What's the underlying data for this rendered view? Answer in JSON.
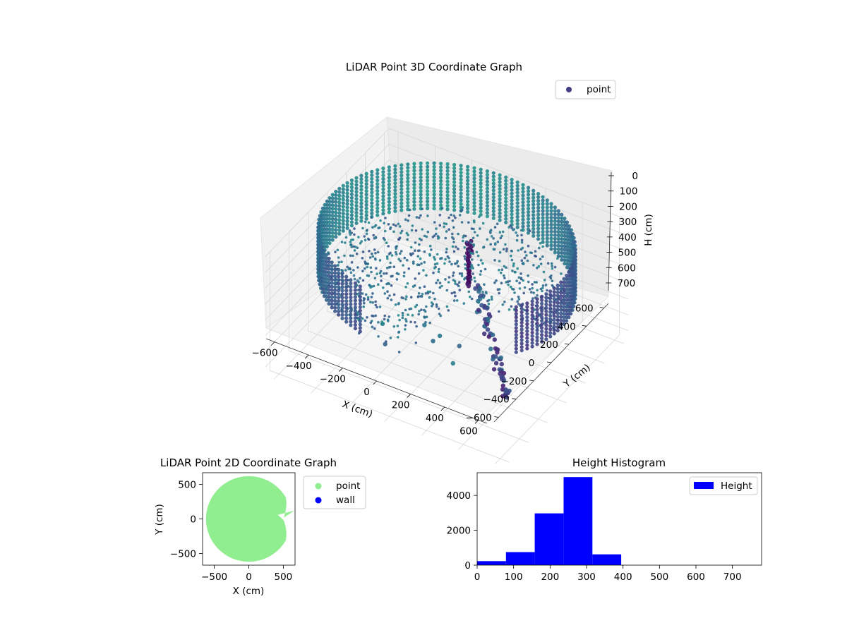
{
  "chart_data": [
    {
      "type": "scatter3d",
      "title": "LiDAR Point 3D Coordinate Graph",
      "xlabel": "X (cm)",
      "ylabel": "Y (cm)",
      "zlabel": "H (cm)",
      "xlim": [
        -650,
        650
      ],
      "ylim": [
        -650,
        650
      ],
      "zlim": [
        750,
        0
      ],
      "x_ticks": [
        "−600",
        "−400",
        "−200",
        "0",
        "200",
        "400",
        "600"
      ],
      "y_ticks": [
        "−600",
        "−400",
        "−200",
        "0",
        "200",
        "400",
        "600"
      ],
      "z_ticks": [
        "0",
        "100",
        "200",
        "300",
        "400",
        "500",
        "600",
        "700"
      ],
      "z_inverted": true,
      "grid": true,
      "legend": {
        "placement": "top-right",
        "entries": [
          {
            "label": "point",
            "color": "#433e85"
          }
        ]
      },
      "series": [
        {
          "name": "point",
          "colormap": "viridis",
          "shape": "cylindrical wall of radius ~620 cm spanning H 0–300 cm, open on the +X/−Y side, plus a vertical scan column near the origin and a cluster on the open side",
          "wall_radius": 620,
          "wall_height_range": [
            0,
            300
          ]
        }
      ]
    },
    {
      "type": "scatter",
      "title": "LiDAR Point 2D Coordinate Graph",
      "xlabel": "X (cm)",
      "ylabel": "Y (cm)",
      "xlim": [
        -670,
        670
      ],
      "ylim": [
        -670,
        670
      ],
      "x_ticks": [
        "−500",
        "0",
        "500"
      ],
      "y_ticks": [
        "−500",
        "0",
        "500"
      ],
      "legend": {
        "placement": "outside-right",
        "entries": [
          {
            "label": "point",
            "color": "#90ee90"
          },
          {
            "label": "wall",
            "color": "#0000ff"
          }
        ]
      },
      "series": [
        {
          "name": "point",
          "color": "#90ee90",
          "shape": "filled disc of radius 620 cm with a notch at the right side"
        },
        {
          "name": "wall",
          "color": "#0000ff",
          "values": []
        }
      ]
    },
    {
      "type": "bar",
      "title": "Height Histogram",
      "xlabel": "",
      "ylabel": "",
      "xlim": [
        0,
        780
      ],
      "ylim": [
        0,
        5300
      ],
      "x_ticks": [
        "0",
        "100",
        "200",
        "300",
        "400",
        "500",
        "600",
        "700"
      ],
      "y_ticks": [
        "0",
        "2000",
        "4000"
      ],
      "legend": {
        "placement": "top-right",
        "entries": [
          {
            "label": "Height",
            "color": "#0000ff"
          }
        ]
      },
      "bin_edges": [
        0,
        79,
        158,
        237,
        316,
        395,
        474,
        553,
        632,
        711,
        780
      ],
      "values": [
        230,
        750,
        2970,
        5050,
        620,
        0,
        0,
        0,
        0,
        0
      ]
    }
  ]
}
